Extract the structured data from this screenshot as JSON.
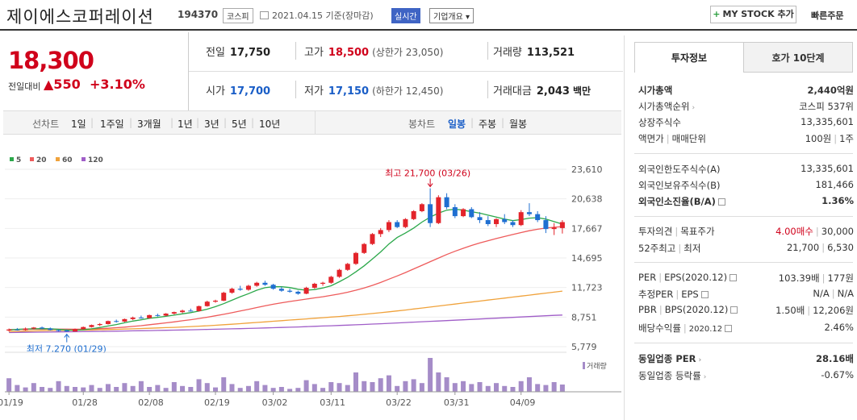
{
  "header": {
    "company_name": "제이에스코퍼레이션",
    "code": "194370",
    "market": "코스피",
    "date": "2021.04.15 기준(장마감)",
    "live_badge": "실시간",
    "company_info_button": "기업개요 ▾",
    "mystock_button": "MY STOCK 추가",
    "quick_order": "빠른주문"
  },
  "summary": {
    "price": "18,300",
    "change_label": "전일대비",
    "change_value": "▲550",
    "change_pct": "+3.10%",
    "prev_close_label": "전일",
    "prev_close": "17,750",
    "high_label": "고가",
    "high": "18,500",
    "upper_limit": "(상한가 23,050)",
    "volume_label": "거래량",
    "volume": "113,521",
    "open_label": "시가",
    "open": "17,700",
    "low_label": "저가",
    "low": "17,150",
    "lower_limit": "(하한가 12,450)",
    "amount_label": "거래대금",
    "amount": "2,043",
    "amount_unit": "백만"
  },
  "periods": {
    "line_label": "선차트",
    "line_items": [
      "1일",
      "1주일",
      "3개월",
      "1년",
      "3년",
      "5년",
      "10년"
    ],
    "candle_label": "봉차트",
    "candle_items": [
      "일봉",
      "주봉",
      "월봉"
    ],
    "selected": "일봉"
  },
  "chart_data": {
    "type": "candlestick",
    "legend": [
      {
        "name": "5",
        "color": "#2ba84a"
      },
      {
        "name": "20",
        "color": "#ee5b5b"
      },
      {
        "name": "60",
        "color": "#f0a23b"
      },
      {
        "name": "120",
        "color": "#a05ec8"
      }
    ],
    "y_ticks": [
      "23,610",
      "20,638",
      "17,667",
      "14,695",
      "11,723",
      "8,751",
      "5,779"
    ],
    "ylim": [
      5779,
      23610
    ],
    "x_ticks": [
      "01/19",
      "01/28",
      "02/08",
      "02/19",
      "03/02",
      "03/11",
      "03/22",
      "03/31",
      "04/09"
    ],
    "annotation_high": "최고 21,700 (03/26)",
    "annotation_low": "최저 7,270 (01/29)",
    "volume_label": "거래량",
    "candles": [
      [
        7400,
        7600,
        7300,
        7500
      ],
      [
        7500,
        7650,
        7400,
        7450
      ],
      [
        7450,
        7700,
        7400,
        7600
      ],
      [
        7600,
        7750,
        7500,
        7700
      ],
      [
        7700,
        7800,
        7550,
        7600
      ],
      [
        7600,
        7700,
        7400,
        7450
      ],
      [
        7450,
        7500,
        7300,
        7350
      ],
      [
        7400,
        7500,
        7270,
        7300
      ],
      [
        7300,
        7600,
        7280,
        7550
      ],
      [
        7550,
        7800,
        7500,
        7750
      ],
      [
        7750,
        8000,
        7700,
        7950
      ],
      [
        7950,
        8150,
        7850,
        8050
      ],
      [
        8050,
        8400,
        8000,
        8350
      ],
      [
        8350,
        8500,
        8200,
        8300
      ],
      [
        8300,
        8600,
        8250,
        8550
      ],
      [
        8550,
        8800,
        8450,
        8700
      ],
      [
        8700,
        8900,
        8600,
        8650
      ],
      [
        8650,
        9000,
        8600,
        8950
      ],
      [
        8950,
        9100,
        8800,
        8900
      ],
      [
        8900,
        9150,
        8850,
        9100
      ],
      [
        9100,
        9300,
        9000,
        9250
      ],
      [
        9250,
        9500,
        9150,
        9400
      ],
      [
        9400,
        9600,
        9300,
        9350
      ],
      [
        9350,
        9900,
        9300,
        9850
      ],
      [
        9850,
        10400,
        9800,
        10300
      ],
      [
        10300,
        10500,
        10200,
        10400
      ],
      [
        10400,
        11300,
        10350,
        11200
      ],
      [
        11200,
        11700,
        11100,
        11600
      ],
      [
        11600,
        11900,
        11400,
        11500
      ],
      [
        11500,
        12000,
        11400,
        11900
      ],
      [
        11900,
        12300,
        11800,
        12200
      ],
      [
        12200,
        12400,
        11900,
        12000
      ],
      [
        12000,
        12100,
        11500,
        11600
      ],
      [
        11600,
        11800,
        11300,
        11400
      ],
      [
        11400,
        11600,
        11200,
        11300
      ],
      [
        11300,
        11400,
        11000,
        11100
      ],
      [
        11100,
        11800,
        11050,
        11700
      ],
      [
        11700,
        12200,
        11600,
        12100
      ],
      [
        12100,
        12300,
        11900,
        12200
      ],
      [
        12200,
        12900,
        12100,
        12800
      ],
      [
        12800,
        13600,
        12700,
        13500
      ],
      [
        13500,
        14200,
        13400,
        14100
      ],
      [
        14100,
        15300,
        14000,
        15200
      ],
      [
        15200,
        16200,
        15100,
        16100
      ],
      [
        16100,
        17200,
        16000,
        17100
      ],
      [
        17100,
        17700,
        16800,
        17500
      ],
      [
        17500,
        18500,
        17300,
        18300
      ],
      [
        18300,
        18500,
        17700,
        17800
      ],
      [
        17800,
        18700,
        17700,
        18600
      ],
      [
        18600,
        19500,
        18500,
        19400
      ],
      [
        19400,
        20200,
        19300,
        20100
      ],
      [
        20100,
        21700,
        17800,
        18200
      ],
      [
        18200,
        21000,
        18100,
        20800
      ],
      [
        20800,
        21200,
        19600,
        19800
      ],
      [
        19800,
        20100,
        18700,
        18900
      ],
      [
        18900,
        19700,
        18800,
        19600
      ],
      [
        19600,
        19800,
        18700,
        18800
      ],
      [
        18800,
        19300,
        18200,
        18500
      ],
      [
        18500,
        18900,
        17900,
        18100
      ],
      [
        18100,
        18700,
        17800,
        18600
      ],
      [
        18600,
        19100,
        18100,
        18300
      ],
      [
        18300,
        18500,
        17800,
        18000
      ],
      [
        18000,
        19500,
        17900,
        19300
      ],
      [
        19300,
        20200,
        18900,
        19100
      ],
      [
        19100,
        19400,
        18300,
        18500
      ],
      [
        18500,
        18900,
        17200,
        17600
      ],
      [
        17600,
        18200,
        17000,
        17750
      ],
      [
        17700,
        18500,
        17150,
        18300
      ]
    ],
    "volumes": [
      28,
      14,
      9,
      18,
      10,
      8,
      22,
      12,
      10,
      9,
      14,
      8,
      16,
      10,
      18,
      12,
      22,
      10,
      14,
      8,
      20,
      12,
      10,
      26,
      18,
      9,
      30,
      16,
      8,
      12,
      22,
      14,
      8,
      10,
      6,
      8,
      24,
      16,
      8,
      20,
      18,
      14,
      40,
      22,
      20,
      28,
      34,
      12,
      22,
      26,
      18,
      70,
      40,
      30,
      18,
      22,
      16,
      20,
      12,
      18,
      12,
      10,
      22,
      30,
      16,
      14,
      20,
      15
    ],
    "ma5": [
      7450,
      7520,
      7550,
      7570,
      7590,
      7580,
      7520,
      7460,
      7430,
      7470,
      7570,
      7700,
      7850,
      8000,
      8180,
      8350,
      8480,
      8620,
      8720,
      8830,
      8950,
      9080,
      9200,
      9350,
      9550,
      9800,
      10100,
      10450,
      10800,
      11100,
      11450,
      11700,
      11800,
      11800,
      11720,
      11550,
      11450,
      11520,
      11680,
      11900,
      12300,
      12750,
      13300,
      13900,
      14600,
      15300,
      16100,
      16750,
      17200,
      17700,
      18300,
      18800,
      19200,
      19500,
      19600,
      19500,
      19350,
      19200,
      19000,
      18800,
      18600,
      18450,
      18550,
      18700,
      18750,
      18600,
      18350,
      18100
    ],
    "ma20": [
      7500,
      7510,
      7520,
      7530,
      7540,
      7545,
      7540,
      7535,
      7530,
      7540,
      7560,
      7590,
      7630,
      7680,
      7740,
      7810,
      7890,
      7980,
      8070,
      8170,
      8270,
      8380,
      8490,
      8610,
      8740,
      8880,
      9030,
      9190,
      9360,
      9530,
      9710,
      9880,
      10040,
      10190,
      10320,
      10440,
      10560,
      10680,
      10800,
      10930,
      11080,
      11250,
      11450,
      11680,
      11940,
      12230,
      12560,
      12890,
      13230,
      13590,
      13960,
      14320,
      14690,
      15040,
      15370,
      15670,
      15950,
      16200,
      16430,
      16650,
      16850,
      17050,
      17250,
      17430,
      17580,
      17700,
      17780,
      17850
    ],
    "ma60": [
      7300,
      7320,
      7340,
      7360,
      7380,
      7400,
      7410,
      7420,
      7430,
      7440,
      7460,
      7480,
      7500,
      7520,
      7545,
      7570,
      7600,
      7630,
      7660,
      7690,
      7720,
      7760,
      7800,
      7840,
      7880,
      7930,
      7980,
      8030,
      8090,
      8150,
      8210,
      8270,
      8330,
      8390,
      8450,
      8510,
      8570,
      8630,
      8690,
      8750,
      8810,
      8880,
      8950,
      9030,
      9110,
      9190,
      9280,
      9370,
      9460,
      9560,
      9660,
      9760,
      9860,
      9960,
      10060,
      10160,
      10260,
      10360,
      10460,
      10560,
      10660,
      10760,
      10860,
      10960,
      11060,
      11160,
      11260,
      11360
    ],
    "ma120": [
      7200,
      7210,
      7220,
      7230,
      7240,
      7250,
      7260,
      7270,
      7280,
      7290,
      7300,
      7310,
      7320,
      7335,
      7350,
      7365,
      7380,
      7395,
      7410,
      7425,
      7440,
      7455,
      7470,
      7490,
      7510,
      7530,
      7550,
      7570,
      7590,
      7610,
      7635,
      7660,
      7685,
      7710,
      7735,
      7760,
      7790,
      7820,
      7850,
      7880,
      7910,
      7940,
      7975,
      8010,
      8045,
      8080,
      8120,
      8160,
      8200,
      8240,
      8280,
      8320,
      8360,
      8400,
      8440,
      8480,
      8520,
      8560,
      8600,
      8640,
      8680,
      8720,
      8760,
      8800,
      8840,
      8880,
      8920,
      8960
    ]
  },
  "right_panel": {
    "tab_active": "투자정보",
    "tab_other": "호가 10단계",
    "market_cap_label": "시가총액",
    "market_cap": "2,440억원",
    "market_cap_rank_label": "시가총액순위",
    "market_cap_rank": "코스피 537위",
    "shares_label": "상장주식수",
    "shares": "13,335,601",
    "par_label": "액면가",
    "trade_unit_label": "매매단위",
    "par": "100원",
    "trade_unit": "1주",
    "foreign_limit_label": "외국인한도주식수(A)",
    "foreign_limit": "13,335,601",
    "foreign_hold_label": "외국인보유주식수(B)",
    "foreign_hold": "181,466",
    "foreign_ratio_label": "외국인소진율(B/A)",
    "foreign_ratio": "1.36%",
    "opinion_label": "투자의견",
    "target_label": "목표주가",
    "opinion": "4.00매수",
    "target": "30,000",
    "week52_label": "52주최고",
    "week52_low_label": "최저",
    "week52_high": "21,700",
    "week52_low": "6,530",
    "per_label": "PER",
    "eps_label": "EPS(2020.12)",
    "per": "103.39배",
    "eps": "177원",
    "est_per_label": "추정PER",
    "est_eps_label": "EPS",
    "est_per": "N/A",
    "est_eps": "N/A",
    "pbr_label": "PBR",
    "bps_label": "BPS(2020.12)",
    "pbr": "1.50배",
    "bps": "12,206원",
    "div_label": "배당수익률",
    "div_date": "2020.12",
    "div": "2.46%",
    "ind_per_label": "동일업종 PER",
    "ind_per": "28.16배",
    "ind_chg_label": "동일업종 등락률",
    "ind_chg": "-0.67%"
  }
}
